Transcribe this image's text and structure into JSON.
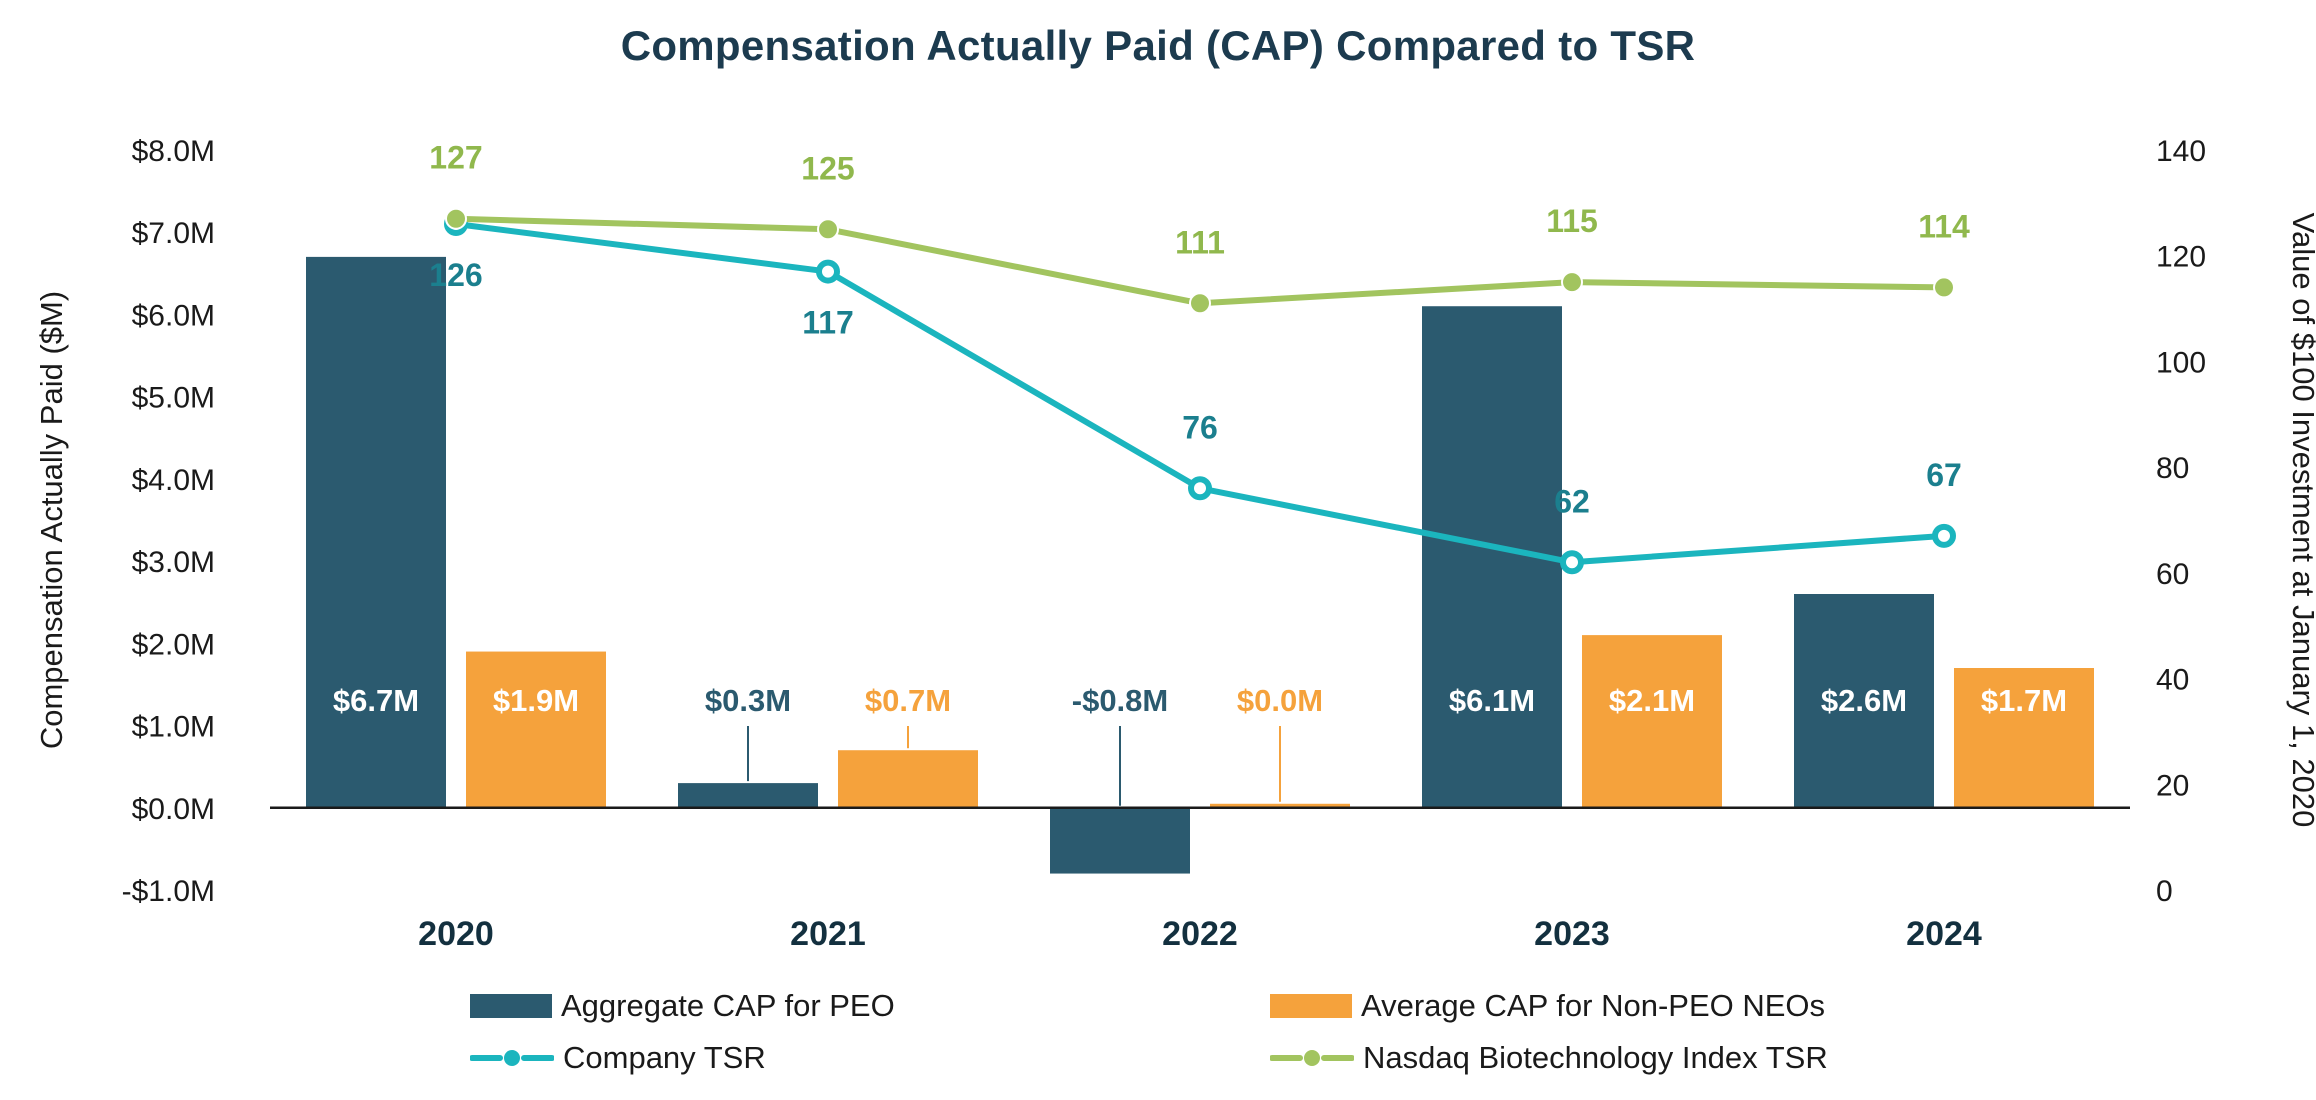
{
  "chart_data": {
    "type": "combo-bar-line",
    "title": "Compensation Actually Paid (CAP) Compared to TSR",
    "categories": [
      "2020",
      "2021",
      "2022",
      "2023",
      "2024"
    ],
    "bar_series": [
      {
        "name": "Aggregate CAP for PEO",
        "color": "#2B5A6F",
        "axis": "left",
        "values": [
          6.7,
          0.3,
          -0.8,
          6.1,
          2.6
        ],
        "value_labels": [
          "$6.7M",
          "$0.3M",
          "-$0.8M",
          "$6.1M",
          "$2.6M"
        ]
      },
      {
        "name": "Average CAP for Non-PEO NEOs",
        "color": "#F5A23C",
        "axis": "left",
        "values": [
          1.9,
          0.7,
          0.0,
          2.1,
          1.7
        ],
        "value_labels": [
          "$1.9M",
          "$0.7M",
          "$0.0M",
          "$2.1M",
          "$1.7M"
        ]
      }
    ],
    "line_series": [
      {
        "name": "Company TSR",
        "color": "#1BB5BE",
        "label_color": "#1B7F8E",
        "marker": "hollow",
        "axis": "right",
        "values": [
          126,
          117,
          76,
          62,
          67
        ],
        "label_side": [
          "below",
          "below",
          "above",
          "above",
          "above"
        ]
      },
      {
        "name": "Nasdaq Biotechnology Index TSR",
        "color": "#A2C45F",
        "label_color": "#90B84D",
        "marker": "solid",
        "axis": "right",
        "values": [
          127,
          125,
          111,
          115,
          114
        ],
        "label_side": [
          "above",
          "above",
          "above",
          "above",
          "above"
        ]
      }
    ],
    "left_axis": {
      "title": "Compensation Actually Paid ($M)",
      "min": -1,
      "max": 8,
      "ticks": [
        {
          "v": 8,
          "t": "$8.0M"
        },
        {
          "v": 7,
          "t": "$7.0M"
        },
        {
          "v": 6,
          "t": "$6.0M"
        },
        {
          "v": 5,
          "t": "$5.0M"
        },
        {
          "v": 4,
          "t": "$4.0M"
        },
        {
          "v": 3,
          "t": "$3.0M"
        },
        {
          "v": 2,
          "t": "$2.0M"
        },
        {
          "v": 1,
          "t": "$1.0M"
        },
        {
          "v": 0,
          "t": "$0.0M"
        },
        {
          "v": -1,
          "t": "-$1.0M"
        }
      ]
    },
    "right_axis": {
      "title": "Value of $100 Investment at January 1, 2020",
      "min": 0,
      "max": 140,
      "ticks": [
        {
          "v": 140,
          "t": "140"
        },
        {
          "v": 120,
          "t": "120"
        },
        {
          "v": 100,
          "t": "100"
        },
        {
          "v": 80,
          "t": "80"
        },
        {
          "v": 60,
          "t": "60"
        },
        {
          "v": 40,
          "t": "40"
        },
        {
          "v": 20,
          "t": "20"
        },
        {
          "v": 0,
          "t": "0"
        }
      ]
    },
    "grid": false,
    "legend_position": "bottom"
  },
  "legend": {
    "items": [
      {
        "label": "Aggregate CAP for PEO",
        "swatch": "bar",
        "color": "#2B5A6F"
      },
      {
        "label": "Average CAP for Non-PEO NEOs",
        "swatch": "bar",
        "color": "#F5A23C"
      },
      {
        "label": "Company TSR",
        "swatch": "line-dot",
        "color": "#1BB5BE"
      },
      {
        "label": "Nasdaq Biotechnology Index TSR",
        "swatch": "line-dot",
        "color": "#A2C45F"
      }
    ]
  },
  "colors": {
    "background": "#FFFFFF",
    "title_text": "#1C3B4F",
    "axis_text": "#1A1A1A",
    "axis_line": "#1A1A1A",
    "bar_label_inside": "#FFFFFF"
  }
}
